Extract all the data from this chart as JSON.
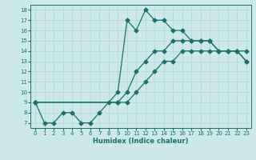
{
  "xlabel": "Humidex (Indice chaleur)",
  "xlim": [
    -0.5,
    23.5
  ],
  "ylim": [
    6.5,
    18.5
  ],
  "xticks": [
    0,
    1,
    2,
    3,
    4,
    5,
    6,
    7,
    8,
    9,
    10,
    11,
    12,
    13,
    14,
    15,
    16,
    17,
    18,
    19,
    20,
    21,
    22,
    23
  ],
  "yticks": [
    7,
    8,
    9,
    10,
    11,
    12,
    13,
    14,
    15,
    16,
    17,
    18
  ],
  "bg_color": "#cce8e8",
  "grid_color": "#b0d4d4",
  "line_color": "#1a7070",
  "line1_x": [
    0,
    1,
    2,
    3,
    4,
    5,
    6,
    7,
    8,
    9,
    10,
    11,
    12,
    13,
    14,
    15,
    16,
    17,
    18,
    19,
    20,
    21,
    22,
    23
  ],
  "line1_y": [
    9,
    7,
    7,
    8,
    8,
    7,
    7,
    8,
    9,
    10,
    17,
    16,
    18,
    17,
    17,
    16,
    16,
    15,
    15,
    15,
    14,
    14,
    14,
    14
  ],
  "line2_x": [
    0,
    9,
    10,
    11,
    12,
    13,
    14,
    15,
    16,
    17,
    18,
    19,
    20,
    21,
    22,
    23
  ],
  "line2_y": [
    9,
    9,
    10,
    12,
    13,
    14,
    14,
    15,
    15,
    15,
    15,
    15,
    14,
    14,
    14,
    13
  ],
  "line3_x": [
    0,
    9,
    10,
    11,
    12,
    13,
    14,
    15,
    16,
    17,
    18,
    19,
    20,
    21,
    22,
    23
  ],
  "line3_y": [
    9,
    9,
    9,
    10,
    11,
    12,
    13,
    13,
    14,
    14,
    14,
    14,
    14,
    14,
    14,
    13
  ]
}
